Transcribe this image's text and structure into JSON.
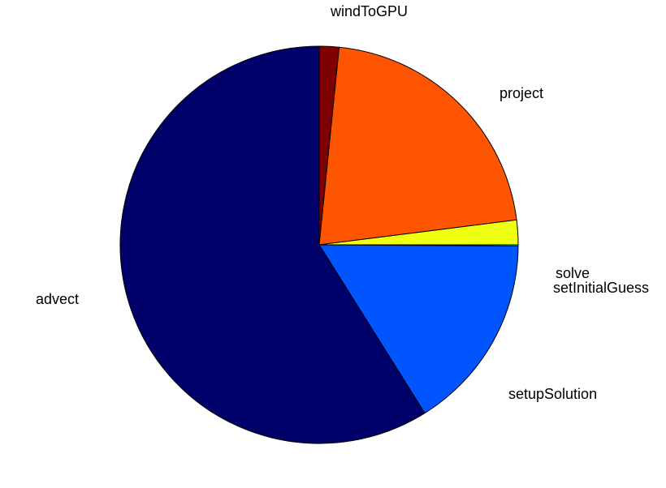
{
  "chart_data": {
    "type": "pie",
    "title": "",
    "slices": [
      {
        "label": "windToGPU",
        "value": 1.6,
        "color": "#7f0000"
      },
      {
        "label": "project",
        "value": 21.4,
        "color": "#ff5500"
      },
      {
        "label": "solve",
        "value": 2.0,
        "color": "#eeff11"
      },
      {
        "label": "setInitialGuess",
        "value": 0.1,
        "color": "#00ffff"
      },
      {
        "label": "setupSolution",
        "value": 16.0,
        "color": "#0055ff"
      },
      {
        "label": "advect",
        "value": 58.9,
        "color": "#00006a"
      }
    ],
    "start_angle_deg": 90,
    "direction": "clockwise",
    "legend": "none"
  }
}
